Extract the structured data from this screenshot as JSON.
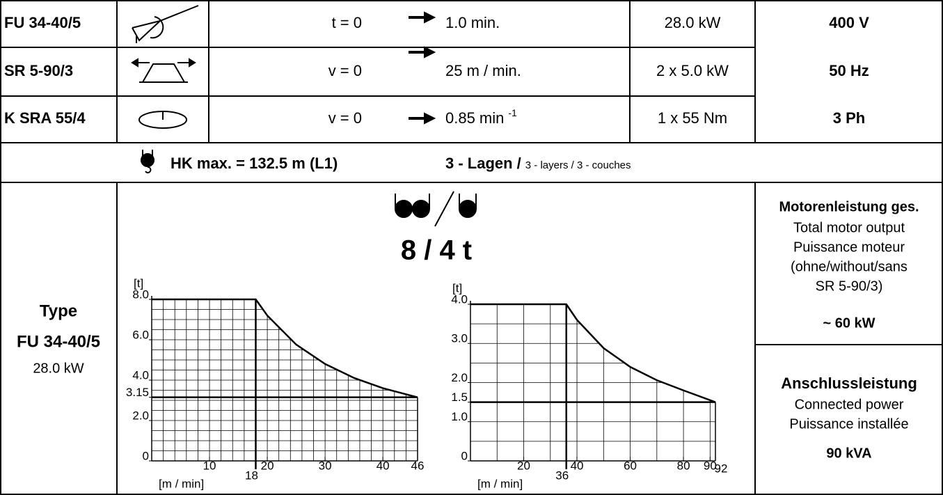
{
  "rows": [
    {
      "model": "FU 34-40/5",
      "var": "t = 0",
      "target": "1.0 min.",
      "power": "28.0 kW",
      "supply": "400 V"
    },
    {
      "model": "SR 5-90/3",
      "var": "v = 0",
      "target": "25 m / min.",
      "power": "2 x 5.0 kW",
      "supply": "50 Hz"
    },
    {
      "model": "K SRA 55/4",
      "var": "v = 0",
      "target": "0.85 min",
      "target_sup": "-1",
      "power": "1 x 55 Nm",
      "supply": "3 Ph"
    }
  ],
  "hook": {
    "label": "HK max. = 132.5 m (L1)",
    "layers": "3 - Lagen /",
    "layers_small": "3 - layers / 3 - couches"
  },
  "type_box": {
    "label": "Type",
    "model": "FU 34-40/5",
    "power": "28.0 kW"
  },
  "capacity": "8 / 4 t",
  "motor": {
    "title": "Motorenleistung ges.",
    "lines": [
      "Total motor output",
      "Puissance moteur",
      "(ohne/without/sans",
      "SR 5-90/3)"
    ],
    "value": "~ 60 kW"
  },
  "connected": {
    "title": "Anschlussleistung",
    "lines": [
      "Connected power",
      "Puissance installée"
    ],
    "value": "90 kVA"
  },
  "charts": [
    {
      "type": "line",
      "ylabel": "[t]",
      "xlabel": "[m / min]",
      "xlim": [
        0,
        46
      ],
      "ylim": [
        0,
        8
      ],
      "yticks": [
        0,
        {
          "value": 2,
          "label": "2.0"
        },
        3.15,
        {
          "value": 4,
          "label": "4.0"
        },
        {
          "value": 6,
          "label": "6.0"
        },
        {
          "value": 8,
          "label": "8.0"
        }
      ],
      "xticks": [
        10,
        18,
        20,
        30,
        40,
        46
      ],
      "x": [
        0,
        18,
        20,
        25,
        30,
        35,
        40,
        46
      ],
      "values": [
        8,
        8,
        7.2,
        5.76,
        4.8,
        4.11,
        3.6,
        3.15
      ]
    },
    {
      "type": "line",
      "ylabel": "[t]",
      "xlabel": "[m / min]",
      "xlim": [
        0,
        92
      ],
      "ylim": [
        0,
        4
      ],
      "yticks": [
        0,
        {
          "value": 1,
          "label": "1.0"
        },
        1.5,
        {
          "value": 2,
          "label": "2.0"
        },
        {
          "value": 3,
          "label": "3.0"
        },
        {
          "value": 4,
          "label": "4.0"
        }
      ],
      "xticks": [
        20,
        36,
        40,
        60,
        80,
        90,
        92
      ],
      "x": [
        0,
        36,
        40,
        50,
        60,
        70,
        80,
        92
      ],
      "values": [
        4,
        4,
        3.6,
        2.88,
        2.4,
        2.06,
        1.8,
        1.5
      ]
    }
  ]
}
